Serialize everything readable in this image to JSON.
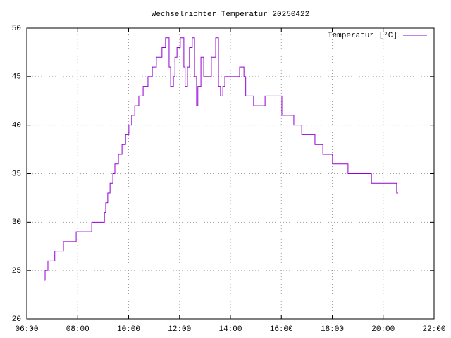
{
  "chart_data": {
    "type": "line",
    "title": "Wechselrichter Temperatur 20250422",
    "x": [
      6.69,
      6.72,
      6.72,
      6.83,
      6.83,
      7.1,
      7.1,
      7.44,
      7.44,
      7.94,
      7.94,
      8.55,
      8.55,
      9.05,
      9.05,
      9.1,
      9.1,
      9.18,
      9.18,
      9.27,
      9.27,
      9.38,
      9.38,
      9.46,
      9.46,
      9.6,
      9.6,
      9.74,
      9.74,
      9.88,
      9.88,
      10.01,
      10.01,
      10.12,
      10.12,
      10.24,
      10.24,
      10.4,
      10.4,
      10.57,
      10.57,
      10.76,
      10.76,
      10.93,
      10.93,
      11.09,
      11.09,
      11.31,
      11.31,
      11.45,
      11.45,
      11.59,
      11.59,
      11.65,
      11.65,
      11.76,
      11.76,
      11.82,
      11.82,
      11.9,
      11.9,
      12.03,
      12.03,
      12.17,
      12.17,
      12.22,
      12.22,
      12.31,
      12.31,
      12.39,
      12.39,
      12.5,
      12.5,
      12.59,
      12.59,
      12.67,
      12.67,
      12.72,
      12.72,
      12.84,
      12.84,
      12.95,
      12.95,
      13.25,
      13.25,
      13.42,
      13.42,
      13.53,
      13.53,
      13.61,
      13.61,
      13.7,
      13.7,
      13.78,
      13.78,
      14.36,
      14.36,
      14.53,
      14.53,
      14.6,
      14.6,
      14.91,
      14.91,
      15.36,
      15.36,
      16.02,
      16.02,
      16.49,
      16.49,
      16.8,
      16.8,
      17.32,
      17.32,
      17.63,
      17.63,
      18.01,
      18.01,
      18.62,
      18.62,
      19.54,
      19.54,
      20.53,
      20.53,
      20.59
    ],
    "series": [
      {
        "name": "Temperatur [°C]",
        "color": "#9400d3",
        "values": [
          24,
          24,
          25,
          25,
          26,
          26,
          27,
          27,
          28,
          28,
          29,
          29,
          30,
          30,
          31,
          31,
          32,
          32,
          33,
          33,
          34,
          34,
          35,
          35,
          36,
          36,
          37,
          37,
          38,
          38,
          39,
          39,
          40,
          40,
          41,
          41,
          42,
          42,
          43,
          43,
          44,
          44,
          45,
          45,
          46,
          46,
          47,
          47,
          48,
          48,
          49,
          49,
          46,
          46,
          44,
          44,
          45,
          45,
          47,
          47,
          48,
          48,
          49,
          49,
          46,
          46,
          44,
          44,
          46,
          46,
          48,
          48,
          49,
          49,
          45,
          45,
          42,
          42,
          44,
          44,
          47,
          47,
          45,
          45,
          47,
          47,
          49,
          49,
          44,
          44,
          43,
          43,
          44,
          44,
          45,
          45,
          46,
          46,
          45,
          45,
          43,
          43,
          42,
          42,
          43,
          43,
          41,
          41,
          40,
          40,
          39,
          39,
          38,
          38,
          37,
          37,
          36,
          36,
          35,
          35,
          34,
          34,
          33,
          33
        ]
      }
    ],
    "xlim": [
      6,
      22
    ],
    "xticks": [
      {
        "value": 6,
        "label": "06:00"
      },
      {
        "value": 8,
        "label": "08:00"
      },
      {
        "value": 10,
        "label": "10:00"
      },
      {
        "value": 12,
        "label": "12:00"
      },
      {
        "value": 14,
        "label": "14:00"
      },
      {
        "value": 16,
        "label": "16:00"
      },
      {
        "value": 18,
        "label": "18:00"
      },
      {
        "value": 20,
        "label": "20:00"
      },
      {
        "value": 22,
        "label": "22:00"
      }
    ],
    "ylim": [
      20,
      50
    ],
    "yticks": [
      20,
      25,
      30,
      35,
      40,
      45,
      50
    ],
    "grid": true,
    "legend": "top-right"
  }
}
